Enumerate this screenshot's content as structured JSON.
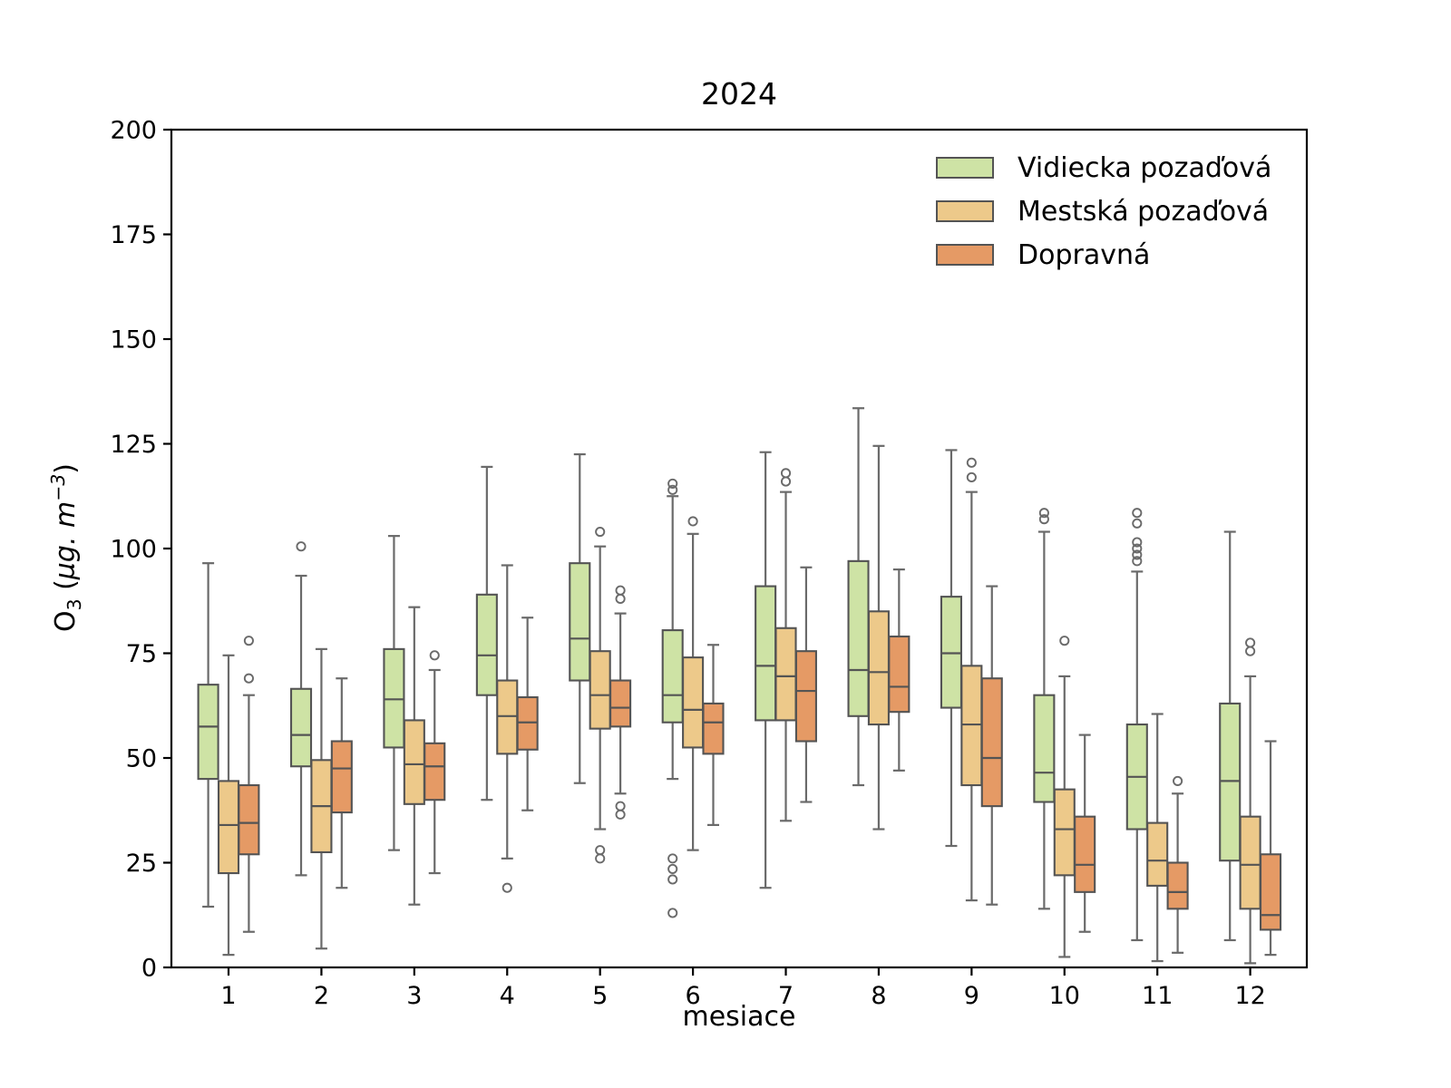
{
  "chart_data": {
    "type": "boxplot",
    "title": "2024",
    "xlabel": "mesiace",
    "ylabel_text": "O3 (µg. m-3)",
    "ylabel_parts": {
      "pre": "O",
      "sub": "3",
      "open": " (",
      "unit": "µg. m",
      "sup": "−3",
      "close": ")"
    },
    "ylim": [
      0,
      200
    ],
    "yticks": [
      0,
      25,
      50,
      75,
      100,
      125,
      150,
      175,
      200
    ],
    "categories": [
      "1",
      "2",
      "3",
      "4",
      "5",
      "6",
      "7",
      "8",
      "9",
      "10",
      "11",
      "12"
    ],
    "legend_position": "upper right",
    "grid": false,
    "colors": {
      "frame": "#000000",
      "box_edge": "#545454",
      "whisker": "#6a6a6a"
    },
    "series": [
      {
        "name": "Vidiecka pozaďová",
        "slug": "vidiecka-pozadova",
        "color": "#cee3a5",
        "boxes": [
          {
            "low": 14.5,
            "q1": 45,
            "med": 57.5,
            "q3": 67.5,
            "high": 96.5,
            "outliers": []
          },
          {
            "low": 22,
            "q1": 48,
            "med": 55.5,
            "q3": 66.5,
            "high": 93.5,
            "outliers": [
              100.5
            ]
          },
          {
            "low": 28,
            "q1": 52.5,
            "med": 64,
            "q3": 76,
            "high": 103,
            "outliers": []
          },
          {
            "low": 40,
            "q1": 65,
            "med": 74.5,
            "q3": 89,
            "high": 119.5,
            "outliers": []
          },
          {
            "low": 44,
            "q1": 68.5,
            "med": 78.5,
            "q3": 96.5,
            "high": 122.5,
            "outliers": []
          },
          {
            "low": 45,
            "q1": 58.5,
            "med": 65,
            "q3": 80.5,
            "high": 112.5,
            "outliers": [
              115.5,
              114,
              26,
              23.5,
              21,
              13
            ]
          },
          {
            "low": 19,
            "q1": 59,
            "med": 72,
            "q3": 91,
            "high": 123,
            "outliers": []
          },
          {
            "low": 43.5,
            "q1": 60,
            "med": 71,
            "q3": 97,
            "high": 133.5,
            "outliers": []
          },
          {
            "low": 29,
            "q1": 62,
            "med": 75,
            "q3": 88.5,
            "high": 123.5,
            "outliers": []
          },
          {
            "low": 14,
            "q1": 39.5,
            "med": 46.5,
            "q3": 65,
            "high": 104,
            "outliers": [
              108.5,
              107
            ]
          },
          {
            "low": 6.5,
            "q1": 33,
            "med": 45.5,
            "q3": 58,
            "high": 94.5,
            "outliers": [
              108.5,
              106,
              101.5,
              100,
              98.5,
              97
            ]
          },
          {
            "low": 6.5,
            "q1": 25.5,
            "med": 44.5,
            "q3": 63,
            "high": 104,
            "outliers": []
          }
        ]
      },
      {
        "name": "Mestská pozaďová",
        "slug": "mestska-pozadova",
        "color": "#edc98a",
        "boxes": [
          {
            "low": 3,
            "q1": 22.5,
            "med": 34,
            "q3": 44.5,
            "high": 74.5,
            "outliers": []
          },
          {
            "low": 4.5,
            "q1": 27.5,
            "med": 38.5,
            "q3": 49.5,
            "high": 76,
            "outliers": []
          },
          {
            "low": 15,
            "q1": 39,
            "med": 48.5,
            "q3": 59,
            "high": 86,
            "outliers": []
          },
          {
            "low": 26,
            "q1": 51,
            "med": 60,
            "q3": 68.5,
            "high": 96,
            "outliers": [
              19
            ]
          },
          {
            "low": 33,
            "q1": 57,
            "med": 65,
            "q3": 75.5,
            "high": 100.5,
            "outliers": [
              104,
              28,
              26
            ]
          },
          {
            "low": 28,
            "q1": 52.5,
            "med": 61.5,
            "q3": 74,
            "high": 103.5,
            "outliers": [
              106.5
            ]
          },
          {
            "low": 35,
            "q1": 59,
            "med": 69.5,
            "q3": 81,
            "high": 113.5,
            "outliers": [
              118,
              116
            ]
          },
          {
            "low": 33,
            "q1": 58,
            "med": 70.5,
            "q3": 85,
            "high": 124.5,
            "outliers": []
          },
          {
            "low": 16,
            "q1": 43.5,
            "med": 58,
            "q3": 72,
            "high": 113.5,
            "outliers": [
              120.5,
              117
            ]
          },
          {
            "low": 2.5,
            "q1": 22,
            "med": 33,
            "q3": 42.5,
            "high": 69.5,
            "outliers": [
              78
            ]
          },
          {
            "low": 1.5,
            "q1": 19.5,
            "med": 25.5,
            "q3": 34.5,
            "high": 60.5,
            "outliers": []
          },
          {
            "low": 1,
            "q1": 14,
            "med": 24.5,
            "q3": 36,
            "high": 69.5,
            "outliers": [
              77.5,
              75.5
            ]
          }
        ]
      },
      {
        "name": "Dopravná",
        "slug": "dopravna",
        "color": "#e59a65",
        "boxes": [
          {
            "low": 8.5,
            "q1": 27,
            "med": 34.5,
            "q3": 43.5,
            "high": 65,
            "outliers": [
              78,
              69
            ]
          },
          {
            "low": 19,
            "q1": 37,
            "med": 47.5,
            "q3": 54,
            "high": 69,
            "outliers": []
          },
          {
            "low": 22.5,
            "q1": 40,
            "med": 48,
            "q3": 53.5,
            "high": 71,
            "outliers": [
              74.5
            ]
          },
          {
            "low": 37.5,
            "q1": 52,
            "med": 58.5,
            "q3": 64.5,
            "high": 83.5,
            "outliers": []
          },
          {
            "low": 41.5,
            "q1": 57.5,
            "med": 62,
            "q3": 68.5,
            "high": 84.5,
            "outliers": [
              90,
              88,
              38.5,
              36.5
            ]
          },
          {
            "low": 34,
            "q1": 51,
            "med": 58.5,
            "q3": 63,
            "high": 77,
            "outliers": []
          },
          {
            "low": 39.5,
            "q1": 54,
            "med": 66,
            "q3": 75.5,
            "high": 95.5,
            "outliers": []
          },
          {
            "low": 47,
            "q1": 61,
            "med": 67,
            "q3": 79,
            "high": 95,
            "outliers": []
          },
          {
            "low": 15,
            "q1": 38.5,
            "med": 50,
            "q3": 69,
            "high": 91,
            "outliers": []
          },
          {
            "low": 8.5,
            "q1": 18,
            "med": 24.5,
            "q3": 36,
            "high": 55.5,
            "outliers": []
          },
          {
            "low": 3.5,
            "q1": 14,
            "med": 18,
            "q3": 25,
            "high": 41.5,
            "outliers": [
              44.5
            ]
          },
          {
            "low": 3,
            "q1": 9,
            "med": 12.5,
            "q3": 27,
            "high": 54,
            "outliers": []
          }
        ]
      }
    ]
  }
}
